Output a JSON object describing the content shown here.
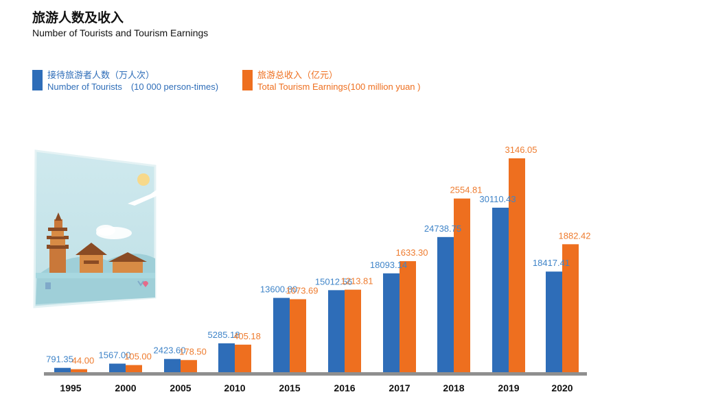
{
  "header": {
    "title_cn": "旅游人数及收入",
    "title_en": "Number of Tourists and Tourism Earnings"
  },
  "legend": {
    "a_cn": "接待旅游者人数（万人次）",
    "a_en": "Number of Tourists　(10 000 person-times)",
    "b_cn": "旅游总收入（亿元）",
    "b_en": "Total Tourism Earnings(100 million yuan )"
  },
  "colors": {
    "tourists": "#2e6db8",
    "earnings": "#ee6f1f",
    "tourists_label": "#3f84c8",
    "earnings_label": "#ee7b2e",
    "axis": "#8f8f8f"
  },
  "chart_data": {
    "type": "bar",
    "categories": [
      "1995",
      "2000",
      "2005",
      "2010",
      "2015",
      "2016",
      "2017",
      "2018",
      "2019",
      "2020"
    ],
    "series": [
      {
        "name": "接待旅游者人数（万人次） Number of Tourists (10 000 person-times)",
        "values": [
          791.35,
          1567.0,
          2423.6,
          5285.18,
          13600.8,
          15012.56,
          18093.14,
          24738.75,
          30110.43,
          18417.41
        ],
        "labels": [
          "791.35",
          "1567.00",
          "2423.60",
          "5285.18",
          "13600.80",
          "15012.56",
          "18093.14",
          "24738.75",
          "30110.43",
          "18417.41"
        ]
      },
      {
        "name": "旅游总收入（亿元） Total Tourism Earnings(100 million yuan )",
        "values": [
          44.0,
          105.0,
          178.5,
          405.18,
          1073.69,
          1213.81,
          1633.3,
          2554.81,
          3146.05,
          1882.42
        ],
        "labels": [
          "44.00",
          "105.00",
          "178.50",
          "405.18",
          "1073.69",
          "1213.81",
          "1633.30",
          "2554.81",
          "3146.05",
          "1882.42"
        ]
      }
    ],
    "title": "旅游人数及收入",
    "subtitle": "Number of Tourists and Tourism Earnings",
    "grid": false,
    "legend_position": "top-left"
  }
}
